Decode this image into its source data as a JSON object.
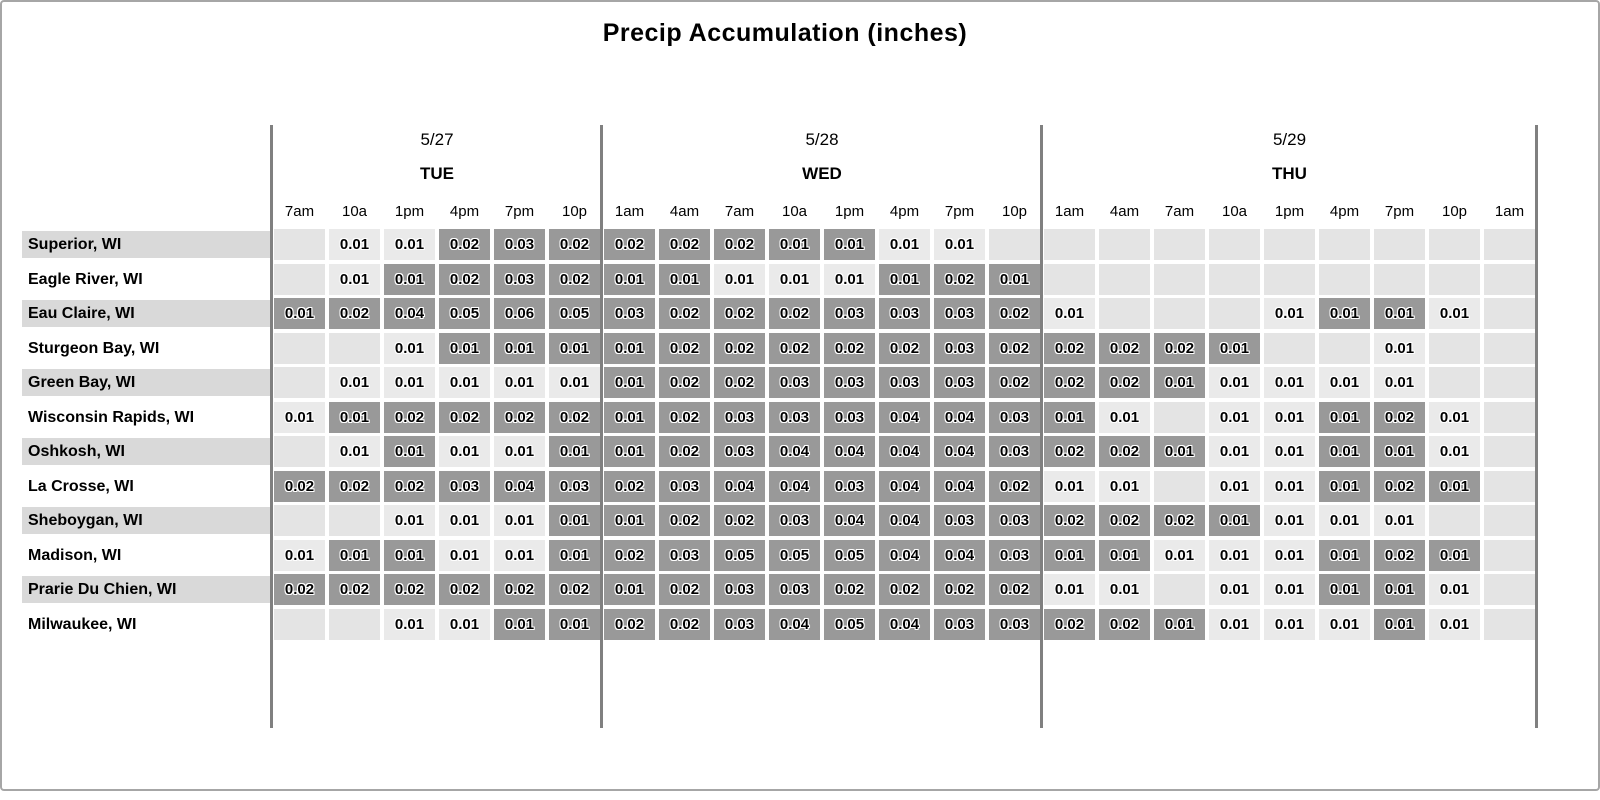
{
  "chart_data": {
    "type": "heatmap",
    "title": "Precip Accumulation (inches)",
    "unit": "inches",
    "legend_position": "none",
    "grid": "off",
    "colors": {
      "dark_cell": "#999999",
      "light_cell": "#eaeaea",
      "empty_cell": "#e4e4e4",
      "row_label_stripe": "#d9d9d9",
      "separator_line": "#808080"
    },
    "day_groups": [
      {
        "date": "5/27",
        "day": "TUE",
        "cols": 6
      },
      {
        "date": "5/28",
        "day": "WED",
        "cols": 8
      },
      {
        "date": "5/29",
        "day": "THU",
        "cols": 9
      }
    ],
    "time_labels": [
      "7am",
      "10a",
      "1pm",
      "4pm",
      "7pm",
      "10p",
      "1am",
      "4am",
      "7am",
      "10a",
      "1pm",
      "4pm",
      "7pm",
      "10p",
      "1am",
      "4am",
      "7am",
      "10a",
      "1pm",
      "4pm",
      "7pm",
      "10p",
      "1am"
    ],
    "rows": [
      {
        "city": "Superior, WI",
        "values": [
          "",
          "0.01",
          "0.01",
          "0.02",
          "0.03",
          "0.02",
          "0.02",
          "0.02",
          "0.02",
          "0.01",
          "0.01",
          "0.01",
          "0.01",
          "",
          "",
          "",
          "",
          "",
          "",
          "",
          "",
          "",
          ""
        ],
        "dark": [
          0,
          0,
          0,
          1,
          1,
          1,
          1,
          1,
          1,
          1,
          1,
          0,
          0,
          0,
          0,
          0,
          0,
          0,
          0,
          0,
          0,
          0,
          0
        ]
      },
      {
        "city": "Eagle River, WI",
        "values": [
          "",
          "0.01",
          "0.01",
          "0.02",
          "0.03",
          "0.02",
          "0.01",
          "0.01",
          "0.01",
          "0.01",
          "0.01",
          "0.01",
          "0.02",
          "0.01",
          "",
          "",
          "",
          "",
          "",
          "",
          "",
          "",
          ""
        ],
        "dark": [
          0,
          0,
          1,
          1,
          1,
          1,
          1,
          1,
          0,
          0,
          0,
          1,
          1,
          1,
          0,
          0,
          0,
          0,
          0,
          0,
          0,
          0,
          0
        ]
      },
      {
        "city": "Eau Claire, WI",
        "values": [
          "0.01",
          "0.02",
          "0.04",
          "0.05",
          "0.06",
          "0.05",
          "0.03",
          "0.02",
          "0.02",
          "0.02",
          "0.03",
          "0.03",
          "0.03",
          "0.02",
          "0.01",
          "",
          "",
          "",
          "0.01",
          "0.01",
          "0.01",
          "0.01",
          ""
        ],
        "dark": [
          1,
          1,
          1,
          1,
          1,
          1,
          1,
          1,
          1,
          1,
          1,
          1,
          1,
          1,
          0,
          0,
          0,
          0,
          0,
          1,
          1,
          0,
          0
        ]
      },
      {
        "city": "Sturgeon Bay, WI",
        "values": [
          "",
          "",
          "0.01",
          "0.01",
          "0.01",
          "0.01",
          "0.01",
          "0.02",
          "0.02",
          "0.02",
          "0.02",
          "0.02",
          "0.03",
          "0.02",
          "0.02",
          "0.02",
          "0.02",
          "0.01",
          "",
          "",
          "0.01",
          "",
          ""
        ],
        "dark": [
          0,
          0,
          0,
          1,
          1,
          1,
          1,
          1,
          1,
          1,
          1,
          1,
          1,
          1,
          1,
          1,
          1,
          1,
          0,
          0,
          0,
          0,
          0
        ]
      },
      {
        "city": "Green Bay, WI",
        "values": [
          "",
          "0.01",
          "0.01",
          "0.01",
          "0.01",
          "0.01",
          "0.01",
          "0.02",
          "0.02",
          "0.03",
          "0.03",
          "0.03",
          "0.03",
          "0.02",
          "0.02",
          "0.02",
          "0.01",
          "0.01",
          "0.01",
          "0.01",
          "0.01",
          "",
          ""
        ],
        "dark": [
          0,
          0,
          0,
          0,
          0,
          0,
          1,
          1,
          1,
          1,
          1,
          1,
          1,
          1,
          1,
          1,
          1,
          0,
          0,
          0,
          0,
          0,
          0
        ]
      },
      {
        "city": "Wisconsin Rapids, WI",
        "values": [
          "0.01",
          "0.01",
          "0.02",
          "0.02",
          "0.02",
          "0.02",
          "0.01",
          "0.02",
          "0.03",
          "0.03",
          "0.03",
          "0.04",
          "0.04",
          "0.03",
          "0.01",
          "0.01",
          "",
          "0.01",
          "0.01",
          "0.01",
          "0.02",
          "0.01",
          ""
        ],
        "dark": [
          0,
          1,
          1,
          1,
          1,
          1,
          1,
          1,
          1,
          1,
          1,
          1,
          1,
          1,
          1,
          0,
          0,
          0,
          0,
          1,
          1,
          0,
          0
        ]
      },
      {
        "city": "Oshkosh, WI",
        "values": [
          "",
          "0.01",
          "0.01",
          "0.01",
          "0.01",
          "0.01",
          "0.01",
          "0.02",
          "0.03",
          "0.04",
          "0.04",
          "0.04",
          "0.04",
          "0.03",
          "0.02",
          "0.02",
          "0.01",
          "0.01",
          "0.01",
          "0.01",
          "0.01",
          "0.01",
          ""
        ],
        "dark": [
          0,
          0,
          1,
          0,
          0,
          1,
          1,
          1,
          1,
          1,
          1,
          1,
          1,
          1,
          1,
          1,
          1,
          0,
          0,
          1,
          1,
          0,
          0
        ]
      },
      {
        "city": "La Crosse, WI",
        "values": [
          "0.02",
          "0.02",
          "0.02",
          "0.03",
          "0.04",
          "0.03",
          "0.02",
          "0.03",
          "0.04",
          "0.04",
          "0.03",
          "0.04",
          "0.04",
          "0.02",
          "0.01",
          "0.01",
          "",
          "0.01",
          "0.01",
          "0.01",
          "0.02",
          "0.01",
          ""
        ],
        "dark": [
          1,
          1,
          1,
          1,
          1,
          1,
          1,
          1,
          1,
          1,
          1,
          1,
          1,
          1,
          0,
          0,
          0,
          0,
          0,
          1,
          1,
          1,
          0
        ]
      },
      {
        "city": "Sheboygan, WI",
        "values": [
          "",
          "",
          "0.01",
          "0.01",
          "0.01",
          "0.01",
          "0.01",
          "0.02",
          "0.02",
          "0.03",
          "0.04",
          "0.04",
          "0.03",
          "0.03",
          "0.02",
          "0.02",
          "0.02",
          "0.01",
          "0.01",
          "0.01",
          "0.01",
          "",
          ""
        ],
        "dark": [
          0,
          0,
          0,
          0,
          0,
          1,
          1,
          1,
          1,
          1,
          1,
          1,
          1,
          1,
          1,
          1,
          1,
          1,
          0,
          0,
          0,
          0,
          0
        ]
      },
      {
        "city": "Madison, WI",
        "values": [
          "0.01",
          "0.01",
          "0.01",
          "0.01",
          "0.01",
          "0.01",
          "0.02",
          "0.03",
          "0.05",
          "0.05",
          "0.05",
          "0.04",
          "0.04",
          "0.03",
          "0.01",
          "0.01",
          "0.01",
          "0.01",
          "0.01",
          "0.01",
          "0.02",
          "0.01",
          ""
        ],
        "dark": [
          0,
          1,
          1,
          0,
          0,
          1,
          1,
          1,
          1,
          1,
          1,
          1,
          1,
          1,
          1,
          1,
          0,
          0,
          0,
          1,
          1,
          1,
          0
        ]
      },
      {
        "city": "Prarie Du Chien, WI",
        "values": [
          "0.02",
          "0.02",
          "0.02",
          "0.02",
          "0.02",
          "0.02",
          "0.01",
          "0.02",
          "0.03",
          "0.03",
          "0.02",
          "0.02",
          "0.02",
          "0.02",
          "0.01",
          "0.01",
          "",
          "0.01",
          "0.01",
          "0.01",
          "0.01",
          "0.01",
          ""
        ],
        "dark": [
          1,
          1,
          1,
          1,
          1,
          1,
          1,
          1,
          1,
          1,
          1,
          1,
          1,
          1,
          0,
          0,
          0,
          0,
          0,
          1,
          1,
          0,
          0
        ]
      },
      {
        "city": "Milwaukee, WI",
        "values": [
          "",
          "",
          "0.01",
          "0.01",
          "0.01",
          "0.01",
          "0.02",
          "0.02",
          "0.03",
          "0.04",
          "0.05",
          "0.04",
          "0.03",
          "0.03",
          "0.02",
          "0.02",
          "0.01",
          "0.01",
          "0.01",
          "0.01",
          "0.01",
          "0.01",
          ""
        ],
        "dark": [
          0,
          0,
          0,
          0,
          1,
          1,
          1,
          1,
          1,
          1,
          1,
          1,
          1,
          1,
          1,
          1,
          1,
          0,
          0,
          0,
          1,
          0,
          0
        ]
      }
    ]
  }
}
